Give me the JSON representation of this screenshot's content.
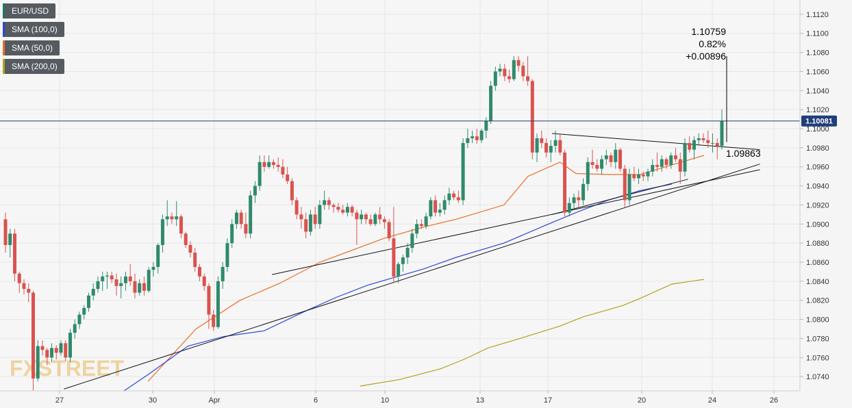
{
  "legend": [
    {
      "label": "EUR/USD",
      "color": "#1a7a5a"
    },
    {
      "label": "SMA (100,0)",
      "color": "#2b49d6"
    },
    {
      "label": "SMA (50,0)",
      "color": "#ea6f23"
    },
    {
      "label": "SMA (200,0)",
      "color": "#b3a21c"
    }
  ],
  "watermark": "FXSTREET",
  "annotation": {
    "high": "1.10759",
    "pct": "0.82%",
    "change": "+0.00896",
    "level": "1.09863"
  },
  "price_label": "1.10081",
  "colors": {
    "up": "#2f8a6c",
    "down": "#d9534f",
    "sma50": "#ea6f23",
    "sma100": "#2b49d6",
    "sma200": "#b3a21c",
    "current": "#1f3e7a"
  },
  "chart_data": {
    "type": "candlestick",
    "ylim": [
      1.0725,
      1.1135
    ],
    "y_ticks": [
      "1.0740",
      "1.0760",
      "1.0780",
      "1.0800",
      "1.0820",
      "1.0840",
      "1.0860",
      "1.0880",
      "1.0900",
      "1.0920",
      "1.0940",
      "1.0960",
      "1.0980",
      "1.1000",
      "1.1020",
      "1.1040",
      "1.1060",
      "1.1080",
      "1.1100",
      "1.1120"
    ],
    "x_ticks": [
      "27",
      "30",
      "Apr",
      "6",
      "10",
      "13",
      "17",
      "20",
      "24",
      "26"
    ],
    "current_price": 1.10081,
    "candles_ohlc": [
      [
        1.0905,
        1.0912,
        1.087,
        1.0878
      ],
      [
        1.0878,
        1.0895,
        1.0865,
        1.089
      ],
      [
        1.089,
        1.0895,
        1.084,
        1.0848
      ],
      [
        1.0848,
        1.085,
        1.0828,
        1.0838
      ],
      [
        1.0838,
        1.0842,
        1.0826,
        1.0832
      ],
      [
        1.0832,
        1.0838,
        1.0818,
        1.0828
      ],
      [
        1.0828,
        1.083,
        1.0725,
        1.0738
      ],
      [
        1.0738,
        1.0778,
        1.0735,
        1.0772
      ],
      [
        1.0772,
        1.0778,
        1.0762,
        1.0768
      ],
      [
        1.0768,
        1.077,
        1.0752,
        1.076
      ],
      [
        1.076,
        1.0775,
        1.0755,
        1.077
      ],
      [
        1.077,
        1.0773,
        1.0758,
        1.0765
      ],
      [
        1.0765,
        1.0778,
        1.0762,
        1.0775
      ],
      [
        1.0775,
        1.0778,
        1.0756,
        1.076
      ],
      [
        1.076,
        1.079,
        1.0755,
        1.0786
      ],
      [
        1.0786,
        1.08,
        1.078,
        1.0795
      ],
      [
        1.0795,
        1.0808,
        1.079,
        1.0805
      ],
      [
        1.0805,
        1.0815,
        1.08,
        1.0812
      ],
      [
        1.0812,
        1.0828,
        1.0808,
        1.0825
      ],
      [
        1.0825,
        1.0838,
        1.082,
        1.0832
      ],
      [
        1.0832,
        1.0845,
        1.0828,
        1.084
      ],
      [
        1.084,
        1.085,
        1.083,
        1.0845
      ],
      [
        1.0845,
        1.085,
        1.0832,
        1.0846
      ],
      [
        1.0846,
        1.085,
        1.0838,
        1.0842
      ],
      [
        1.0842,
        1.0848,
        1.0825,
        1.0835
      ],
      [
        1.0835,
        1.0845,
        1.0822,
        1.0838
      ],
      [
        1.0838,
        1.085,
        1.083,
        1.0845
      ],
      [
        1.0845,
        1.0858,
        1.0835,
        1.084
      ],
      [
        1.084,
        1.0848,
        1.0822,
        1.0828
      ],
      [
        1.0828,
        1.0842,
        1.0825,
        1.0838
      ],
      [
        1.0838,
        1.0845,
        1.0825,
        1.083
      ],
      [
        1.083,
        1.0855,
        1.0828,
        1.0852
      ],
      [
        1.0852,
        1.086,
        1.0845,
        1.0855
      ],
      [
        1.0855,
        1.088,
        1.0848,
        1.0878
      ],
      [
        1.0878,
        1.091,
        1.087,
        1.0905
      ],
      [
        1.0905,
        1.0925,
        1.0898,
        1.0908
      ],
      [
        1.0908,
        1.0912,
        1.09,
        1.0905
      ],
      [
        1.0905,
        1.0924,
        1.0898,
        1.0908
      ],
      [
        1.0908,
        1.091,
        1.0885,
        1.089
      ],
      [
        1.089,
        1.0892,
        1.0875,
        1.0878
      ],
      [
        1.0878,
        1.0882,
        1.0865,
        1.087
      ],
      [
        1.087,
        1.0875,
        1.085,
        1.0855
      ],
      [
        1.0855,
        1.0858,
        1.084,
        1.0845
      ],
      [
        1.0845,
        1.0848,
        1.083,
        1.0835
      ],
      [
        1.0835,
        1.0838,
        1.079,
        1.0805
      ],
      [
        1.0805,
        1.081,
        1.0788,
        1.0792
      ],
      [
        1.0792,
        1.0845,
        1.079,
        1.084
      ],
      [
        1.084,
        1.086,
        1.0832,
        1.0855
      ],
      [
        1.0855,
        1.0885,
        1.085,
        1.088
      ],
      [
        1.088,
        1.0905,
        1.0875,
        1.09
      ],
      [
        1.09,
        1.0915,
        1.0895,
        1.0912
      ],
      [
        1.0912,
        1.0915,
        1.0895,
        1.09
      ],
      [
        1.09,
        1.0912,
        1.0885,
        1.089
      ],
      [
        1.089,
        1.0935,
        1.0885,
        1.093
      ],
      [
        1.093,
        1.0945,
        1.0922,
        1.094
      ],
      [
        1.094,
        1.0972,
        1.0935,
        1.0965
      ],
      [
        1.0965,
        1.0972,
        1.0955,
        1.096
      ],
      [
        1.096,
        1.0972,
        1.0958,
        1.0965
      ],
      [
        1.0965,
        1.0968,
        1.0958,
        1.0962
      ],
      [
        1.0962,
        1.097,
        1.0955,
        1.096
      ],
      [
        1.096,
        1.0968,
        1.0948,
        1.0952
      ],
      [
        1.0952,
        1.096,
        1.0942,
        1.0945
      ],
      [
        1.0945,
        1.0948,
        1.092,
        1.0925
      ],
      [
        1.0925,
        1.0928,
        1.0905,
        1.091
      ],
      [
        1.091,
        1.0918,
        1.0895,
        1.0905
      ],
      [
        1.0905,
        1.0912,
        1.0885,
        1.0892
      ],
      [
        1.0892,
        1.0915,
        1.0888,
        1.091
      ],
      [
        1.091,
        1.0918,
        1.0895,
        1.09
      ],
      [
        1.09,
        1.0925,
        1.0895,
        1.092
      ],
      [
        1.092,
        1.0935,
        1.0915,
        1.0925
      ],
      [
        1.0925,
        1.0928,
        1.0915,
        1.092
      ],
      [
        1.092,
        1.0922,
        1.0912,
        1.0918
      ],
      [
        1.0918,
        1.0922,
        1.0912,
        1.0915
      ],
      [
        1.0915,
        1.092,
        1.091,
        1.0912
      ],
      [
        1.0912,
        1.0922,
        1.0908,
        1.0918
      ],
      [
        1.0918,
        1.092,
        1.0908,
        1.0912
      ],
      [
        1.0912,
        1.0915,
        1.0878,
        1.0905
      ],
      [
        1.0905,
        1.0915,
        1.09,
        1.091
      ],
      [
        1.091,
        1.0912,
        1.09,
        1.0905
      ],
      [
        1.0905,
        1.091,
        1.0898,
        1.09
      ],
      [
        1.09,
        1.0912,
        1.0898,
        1.091
      ],
      [
        1.091,
        1.0918,
        1.09,
        1.0905
      ],
      [
        1.0905,
        1.0908,
        1.0895,
        1.0902
      ],
      [
        1.0902,
        1.0905,
        1.0882,
        1.0885
      ],
      [
        1.0885,
        1.0918,
        1.0838,
        1.0845
      ],
      [
        1.0845,
        1.086,
        1.0838,
        1.0858
      ],
      [
        1.0858,
        1.0868,
        1.085,
        1.0865
      ],
      [
        1.0865,
        1.088,
        1.0858,
        1.0875
      ],
      [
        1.0875,
        1.0895,
        1.087,
        1.089
      ],
      [
        1.089,
        1.0905,
        1.0885,
        1.09
      ],
      [
        1.09,
        1.0905,
        1.0895,
        1.0898
      ],
      [
        1.0898,
        1.0912,
        1.0895,
        1.0908
      ],
      [
        1.0908,
        1.0928,
        1.0905,
        1.0925
      ],
      [
        1.0925,
        1.093,
        1.0908,
        1.0912
      ],
      [
        1.0912,
        1.0922,
        1.0908,
        1.0915
      ],
      [
        1.0915,
        1.093,
        1.091,
        1.0925
      ],
      [
        1.0925,
        1.0938,
        1.092,
        1.0932
      ],
      [
        1.0932,
        1.0935,
        1.0925,
        1.0928
      ],
      [
        1.0928,
        1.0935,
        1.0922,
        1.0925
      ],
      [
        1.0925,
        1.099,
        1.092,
        1.0985
      ],
      [
        1.0985,
        1.1,
        1.098,
        1.099
      ],
      [
        1.099,
        1.0998,
        1.0985,
        1.0992
      ],
      [
        1.0992,
        1.1,
        1.0984,
        1.0988
      ],
      [
        1.0988,
        1.1,
        1.0985,
        1.0998
      ],
      [
        1.0998,
        1.1012,
        1.099,
        1.1008
      ],
      [
        1.1008,
        1.105,
        1.1005,
        1.1045
      ],
      [
        1.1045,
        1.1065,
        1.104,
        1.106
      ],
      [
        1.106,
        1.1068,
        1.1055,
        1.1063
      ],
      [
        1.1063,
        1.1068,
        1.105,
        1.1055
      ],
      [
        1.1055,
        1.1062,
        1.1048,
        1.1052
      ],
      [
        1.1052,
        1.1076,
        1.105,
        1.1072
      ],
      [
        1.1072,
        1.1076,
        1.106,
        1.1066
      ],
      [
        1.1066,
        1.107,
        1.105,
        1.1055
      ],
      [
        1.1055,
        1.1076,
        1.1045,
        1.105
      ],
      [
        1.105,
        1.1052,
        1.0968,
        1.0975
      ],
      [
        1.0975,
        1.0995,
        1.0965,
        1.099
      ],
      [
        1.099,
        1.0998,
        1.098,
        1.0985
      ],
      [
        1.0985,
        1.099,
        1.097,
        1.0975
      ],
      [
        1.0975,
        1.0988,
        1.0965,
        1.0982
      ],
      [
        1.0982,
        1.0998,
        1.0975,
        1.0988
      ],
      [
        1.0988,
        1.0995,
        1.0972,
        1.0975
      ],
      [
        1.0975,
        1.0978,
        1.0908,
        1.0912
      ],
      [
        1.0912,
        1.0928,
        1.0908,
        1.0922
      ],
      [
        1.0922,
        1.0932,
        1.0915,
        1.0928
      ],
      [
        1.0928,
        1.0935,
        1.0918,
        1.0925
      ],
      [
        1.0925,
        1.0948,
        1.092,
        1.0942
      ],
      [
        1.0942,
        1.097,
        1.0935,
        1.0965
      ],
      [
        1.0965,
        1.0978,
        1.0958,
        1.0962
      ],
      [
        1.0962,
        1.0968,
        1.0955,
        1.0958
      ],
      [
        1.0958,
        1.0972,
        1.0952,
        1.0968
      ],
      [
        1.0968,
        1.0978,
        1.0962,
        1.0972
      ],
      [
        1.0972,
        1.0975,
        1.096,
        1.0965
      ],
      [
        1.0965,
        1.0985,
        1.0958,
        1.0978
      ],
      [
        1.0978,
        1.098,
        1.0955,
        1.0958
      ],
      [
        1.0958,
        1.0962,
        1.0918,
        1.0925
      ],
      [
        1.0925,
        1.0958,
        1.092,
        1.0952
      ],
      [
        1.0952,
        1.096,
        1.0945,
        1.0948
      ],
      [
        1.0948,
        1.0958,
        1.0942,
        1.0952
      ],
      [
        1.0952,
        1.0955,
        1.0945,
        1.095
      ],
      [
        1.095,
        1.0958,
        1.0945,
        1.0955
      ],
      [
        1.0955,
        1.0968,
        1.095,
        1.0962
      ],
      [
        1.0962,
        1.0975,
        1.0955,
        1.096
      ],
      [
        1.096,
        1.0972,
        1.0955,
        1.0968
      ],
      [
        1.0968,
        1.097,
        1.0958,
        1.0962
      ],
      [
        1.0962,
        1.0975,
        1.0958,
        1.0972
      ],
      [
        1.0972,
        1.098,
        1.0965,
        1.0968
      ],
      [
        1.0968,
        1.0975,
        1.0942,
        1.0955
      ],
      [
        1.0955,
        1.099,
        1.095,
        1.0985
      ],
      [
        1.0985,
        1.0992,
        1.0975,
        1.0978
      ],
      [
        1.0978,
        1.0992,
        1.0968,
        1.0988
      ],
      [
        1.0988,
        1.0995,
        1.0982,
        1.099
      ],
      [
        1.099,
        1.0995,
        1.0985,
        1.0988
      ],
      [
        1.0988,
        1.0998,
        1.098,
        1.0985
      ],
      [
        1.0985,
        1.0995,
        1.0975,
        1.0985
      ],
      [
        1.0985,
        1.099,
        1.0968,
        1.0982
      ],
      [
        1.0982,
        1.102,
        1.0978,
        1.1008
      ]
    ],
    "sma50": [
      [
        0.185,
        1.0735
      ],
      [
        0.245,
        1.079
      ],
      [
        0.3,
        1.082
      ],
      [
        0.35,
        1.0838
      ],
      [
        0.4,
        1.086
      ],
      [
        0.48,
        1.0885
      ],
      [
        0.53,
        1.0897
      ],
      [
        0.57,
        1.0905
      ],
      [
        0.63,
        1.092
      ],
      [
        0.66,
        1.095
      ],
      [
        0.7,
        1.0965
      ],
      [
        0.72,
        1.0953
      ],
      [
        0.76,
        1.0952
      ],
      [
        0.8,
        1.0952
      ],
      [
        0.84,
        1.0962
      ],
      [
        0.88,
        1.0972
      ]
    ],
    "sma100": [
      [
        0.155,
        1.0725
      ],
      [
        0.185,
        1.0742
      ],
      [
        0.235,
        1.0772
      ],
      [
        0.28,
        1.0782
      ],
      [
        0.33,
        1.0788
      ],
      [
        0.38,
        1.0808
      ],
      [
        0.42,
        1.0823
      ],
      [
        0.46,
        1.0836
      ],
      [
        0.53,
        1.0853
      ],
      [
        0.57,
        1.0865
      ],
      [
        0.63,
        1.088
      ],
      [
        0.68,
        1.0898
      ],
      [
        0.72,
        1.0912
      ],
      [
        0.76,
        1.0925
      ],
      [
        0.8,
        1.0935
      ],
      [
        0.84,
        1.0942
      ]
    ],
    "sma200": [
      [
        0.45,
        1.073
      ],
      [
        0.5,
        1.0737
      ],
      [
        0.55,
        1.0748
      ],
      [
        0.58,
        1.0758
      ],
      [
        0.61,
        1.077
      ],
      [
        0.65,
        1.078
      ],
      [
        0.7,
        1.0793
      ],
      [
        0.73,
        1.0803
      ],
      [
        0.76,
        1.081
      ],
      [
        0.78,
        1.0815
      ],
      [
        0.8,
        1.0822
      ],
      [
        0.84,
        1.0837
      ],
      [
        0.88,
        1.0842
      ]
    ],
    "trendlines": [
      [
        [
          0.08,
          1.0727
        ],
        [
          0.95,
          1.0963
        ]
      ],
      [
        [
          0.34,
          1.0847
        ],
        [
          0.95,
          1.0957
        ]
      ],
      [
        [
          0.69,
          1.0995
        ],
        [
          0.95,
          1.0978
        ]
      ],
      [
        [
          0.69,
          1.091
        ],
        [
          0.86,
          1.0947
        ]
      ]
    ]
  }
}
